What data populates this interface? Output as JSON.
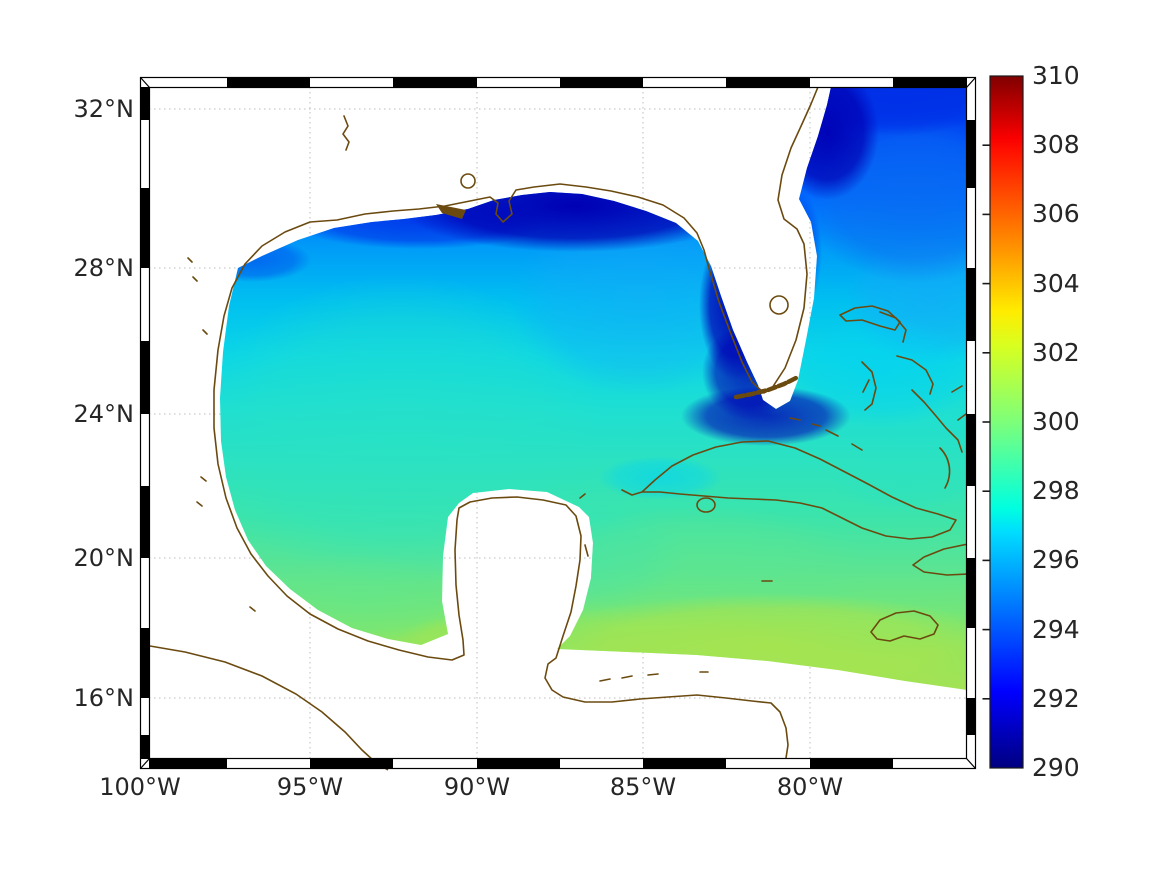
{
  "figure": {
    "kind": "sea surface temperature map, Gulf of Mexico / NW Caribbean / SE US Atlantic",
    "background_color": "#ffffff",
    "land_color": "#ffffff",
    "coastline_color": "#6b4a10",
    "grid_color": "#bdbdbd",
    "tick_label_color": "#262626",
    "frame_style": "alternating black/white fancy border"
  },
  "axes": {
    "lat_ticks": [
      "32°N",
      "28°N",
      "24°N",
      "20°N",
      "16°N"
    ],
    "lon_ticks": [
      "100°W",
      "95°W",
      "90°W",
      "85°W",
      "80°W"
    ]
  },
  "colorbar": {
    "min": 290,
    "max": 310,
    "ticks": [
      290,
      292,
      294,
      296,
      298,
      300,
      302,
      304,
      306,
      308,
      310
    ],
    "colormap": "jet",
    "gradient_stops": [
      {
        "frac": 0.0,
        "color": "#000080"
      },
      {
        "frac": 0.11,
        "color": "#0000ff"
      },
      {
        "frac": 0.34,
        "color": "#00dcff"
      },
      {
        "frac": 0.375,
        "color": "#00ffe0"
      },
      {
        "frac": 0.5,
        "color": "#7dff7a"
      },
      {
        "frac": 0.61,
        "color": "#d8ff20"
      },
      {
        "frac": 0.66,
        "color": "#ffec00"
      },
      {
        "frac": 0.75,
        "color": "#ff9400"
      },
      {
        "frac": 0.89,
        "color": "#ff1200"
      },
      {
        "frac": 0.91,
        "color": "#f90000"
      },
      {
        "frac": 1.0,
        "color": "#800000"
      }
    ]
  },
  "chart_data": {
    "type": "heatmap",
    "title": "",
    "xlabel": "",
    "ylabel": "",
    "x_axis": {
      "tick_labels": [
        "100°W",
        "95°W",
        "90°W",
        "85°W",
        "80°W"
      ],
      "visible_range_deg_west": [
        100,
        75.3
      ]
    },
    "y_axis": {
      "tick_labels": [
        "16°N",
        "20°N",
        "24°N",
        "28°N",
        "32°N"
      ],
      "visible_range_deg_north": [
        14.3,
        32.6
      ]
    },
    "projection": "Mercator-like (latitude spacing widens northward)",
    "colorbar_range": [
      290,
      310
    ],
    "colorbar_tick_step": 2,
    "field_value_range_on_map": [
      290.5,
      301.5
    ],
    "region_estimates": [
      {
        "region": "Atlantic shelf band along SE US / Georgia coast",
        "approx_value": 291
      },
      {
        "region": "open Atlantic, top-right corner",
        "approx_value": 294
      },
      {
        "region": "northern Gulf shelf (TX-LA-MS-AL-FL panhandle)",
        "approx_value": 292.5
      },
      {
        "region": "west Florida shelf and around Florida Keys",
        "approx_value": 293
      },
      {
        "region": "central & western Gulf of Mexico",
        "approx_value": 297.5
      },
      {
        "region": "Bay of Campeche",
        "approx_value": 298.5
      },
      {
        "region": "Straits of Florida / Bahamas",
        "approx_value": 296.5
      },
      {
        "region": "waters around Cuba",
        "approx_value": 297.5
      },
      {
        "region": "NW Caribbean south of Cuba / around Jamaica",
        "approx_value": 299.5
      },
      {
        "region": "southern data edge near 17.5°N",
        "approx_value": 300.5
      }
    ],
    "no_data_regions": [
      "continental land (white, brown coastline outline)",
      "staircase mask band hugging every coastline",
      "Caribbean south of diagonal staircase edge (~17.5°N sloping to ~15.8°N at right)"
    ],
    "legend_position": "right vertical colorbar"
  }
}
